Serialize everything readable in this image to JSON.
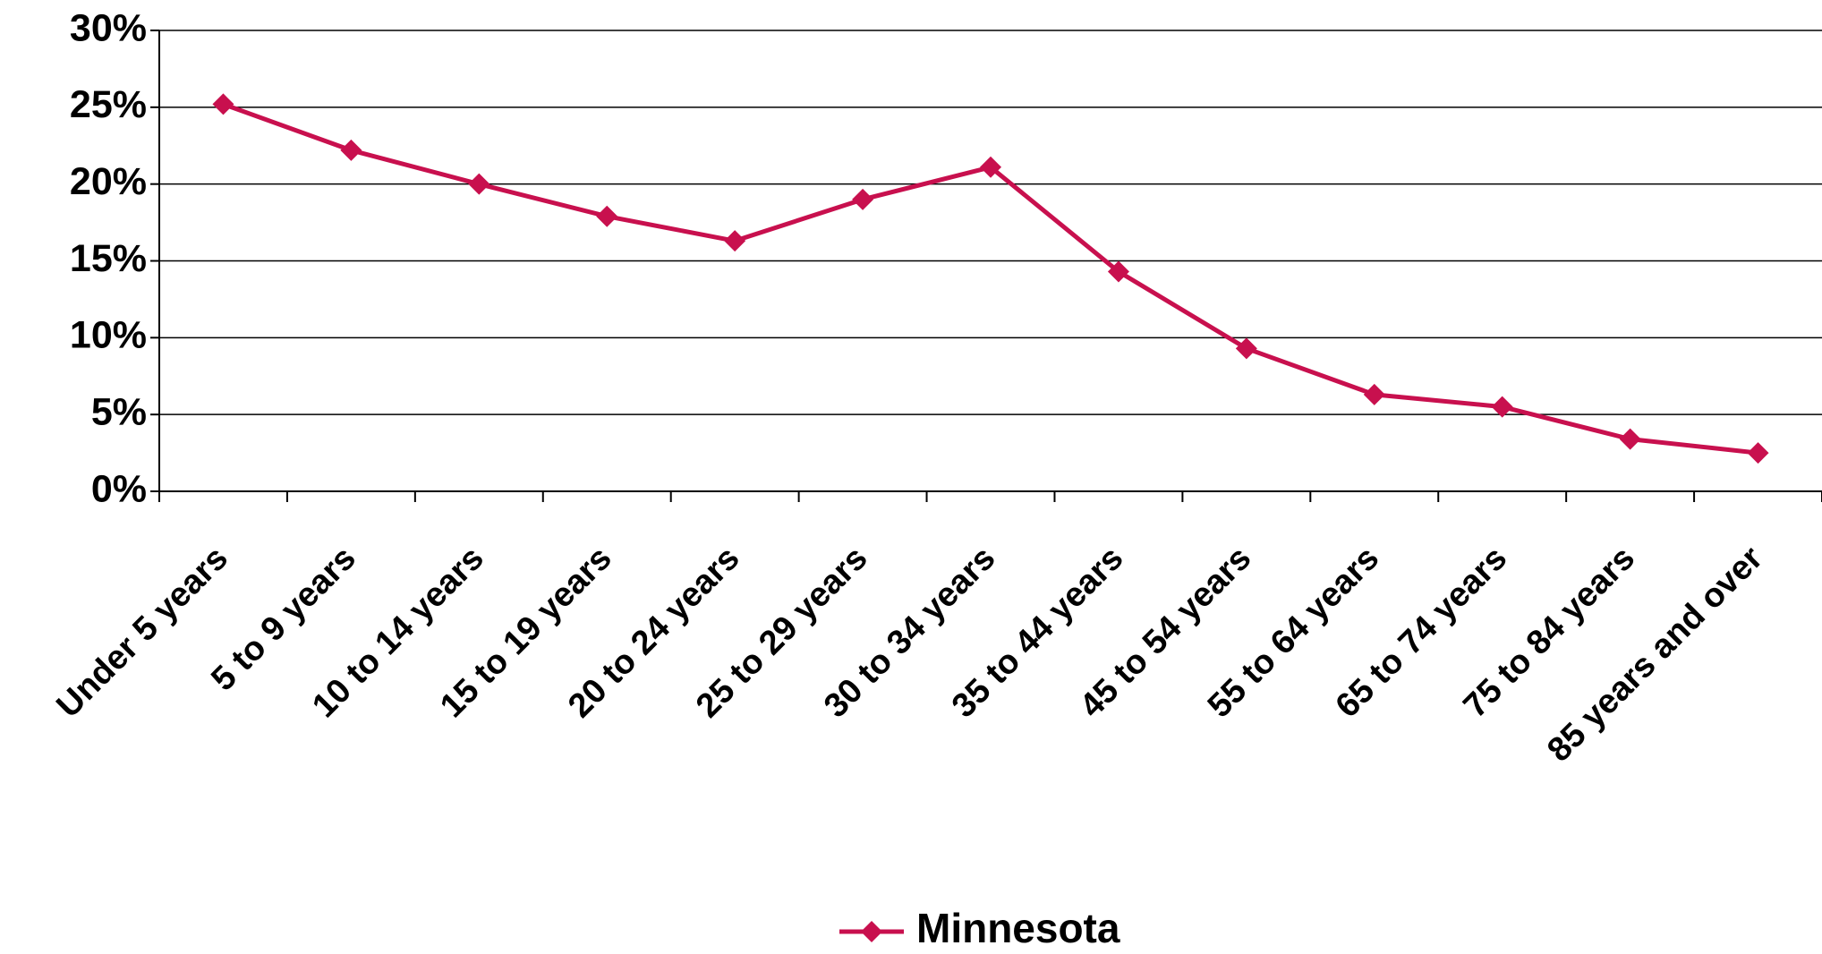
{
  "chart_data": {
    "type": "line",
    "categories": [
      "Under 5 years",
      "5 to 9 years",
      "10 to 14 years",
      "15 to 19 years",
      "20 to 24 years",
      "25 to 29 years",
      "30 to 34 years",
      "35 to 44 years",
      "45 to 54 years",
      "55 to 64 years",
      "65 to 74 years",
      "75 to 84 years",
      "85 years and over"
    ],
    "series": [
      {
        "name": "Minnesota",
        "color": "#c8104e",
        "values": [
          25.2,
          22.2,
          20.0,
          17.9,
          16.3,
          19.0,
          21.1,
          14.3,
          9.3,
          6.3,
          5.5,
          3.4,
          2.5
        ]
      }
    ],
    "ylim": [
      0,
      30
    ],
    "yticks": [
      {
        "value": 0,
        "label": "0%"
      },
      {
        "value": 5,
        "label": "5%"
      },
      {
        "value": 10,
        "label": "10%"
      },
      {
        "value": 15,
        "label": "15%"
      },
      {
        "value": 20,
        "label": "20%"
      },
      {
        "value": 25,
        "label": "25%"
      },
      {
        "value": 30,
        "label": "30%"
      }
    ],
    "grid": true,
    "legend": "bottom"
  }
}
